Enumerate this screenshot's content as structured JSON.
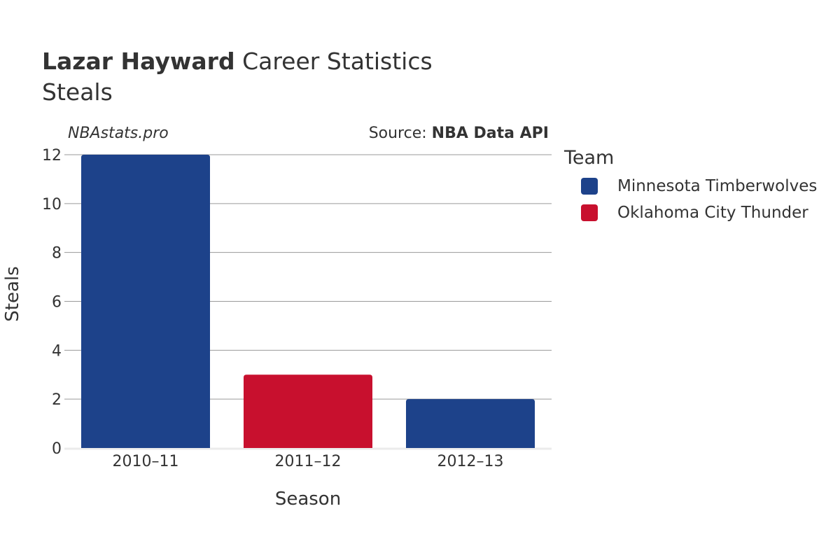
{
  "header": {
    "player_name": "Lazar Hayward",
    "title_rest": " Career Statistics",
    "subtitle": "Steals",
    "credit": "NBAstats.pro",
    "source_prefix": "Source: ",
    "source_name": "NBA Data API"
  },
  "legend": {
    "title": "Team",
    "placement": "right",
    "items": [
      {
        "label": "Minnesota Timberwolves",
        "color": "#1d428a"
      },
      {
        "label": "Oklahoma City Thunder",
        "color": "#c8102e"
      }
    ]
  },
  "chart_data": {
    "type": "bar",
    "xlabel": "Season",
    "ylabel": "Steals",
    "ylim": [
      0,
      12
    ],
    "yticks": [
      0,
      2,
      4,
      6,
      8,
      10,
      12
    ],
    "grid": true,
    "categories": [
      "2010–11",
      "2011–12",
      "2012–13"
    ],
    "bars": [
      {
        "category": "2010–11",
        "team": "Minnesota Timberwolves",
        "value": 12,
        "color": "#1d428a"
      },
      {
        "category": "2011–12",
        "team": "Oklahoma City Thunder",
        "value": 3,
        "color": "#c8102e"
      },
      {
        "category": "2012–13",
        "team": "Minnesota Timberwolves",
        "value": 2,
        "color": "#1d428a"
      }
    ]
  }
}
